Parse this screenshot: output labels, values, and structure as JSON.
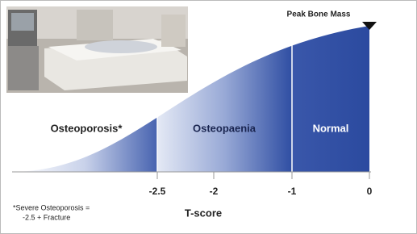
{
  "annotation": "Peak Bone Mass",
  "regions": [
    "Osteoporosis*",
    "Osteopaenia",
    "Normal"
  ],
  "axis": {
    "title": "T-score",
    "ticks": [
      -2.5,
      -2,
      -1,
      0
    ]
  },
  "footnote": [
    "*Severe Osteoporosis =",
    "-2.5 + Fracture"
  ]
}
